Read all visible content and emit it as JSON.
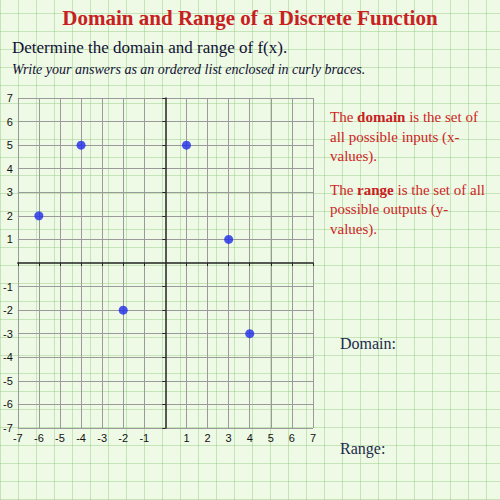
{
  "page": {
    "title": "Domain and Range of a Discrete Function",
    "instruction": "Determine the domain and range of f(x).",
    "note": "Write your answers as an ordered list enclosed in curly braces.",
    "definitions": [
      {
        "before": "The ",
        "term": "domain",
        "after": " is the set of all possible inputs (x-values)."
      },
      {
        "before": "The ",
        "term": "range",
        "after": " is the set of all possible outputs (y-values)."
      }
    ],
    "answers": [
      "Domain:",
      "Range:"
    ]
  },
  "chart_data": {
    "type": "scatter",
    "x": [
      -6,
      -4,
      -2,
      1,
      3,
      4
    ],
    "values": [
      2,
      5,
      -2,
      5,
      1,
      -3
    ],
    "color": "#1f2bea",
    "marker": "circle",
    "xlim": [
      -7,
      7
    ],
    "ylim": [
      -7,
      7
    ],
    "xticks": [
      -7,
      -6,
      -5,
      -4,
      -3,
      -2,
      -1,
      1,
      2,
      3,
      4,
      5,
      6,
      7
    ],
    "yticks": [
      -7,
      -6,
      -5,
      -4,
      -3,
      -2,
      -1,
      1,
      2,
      3,
      4,
      5,
      6,
      7
    ],
    "grid": true
  }
}
